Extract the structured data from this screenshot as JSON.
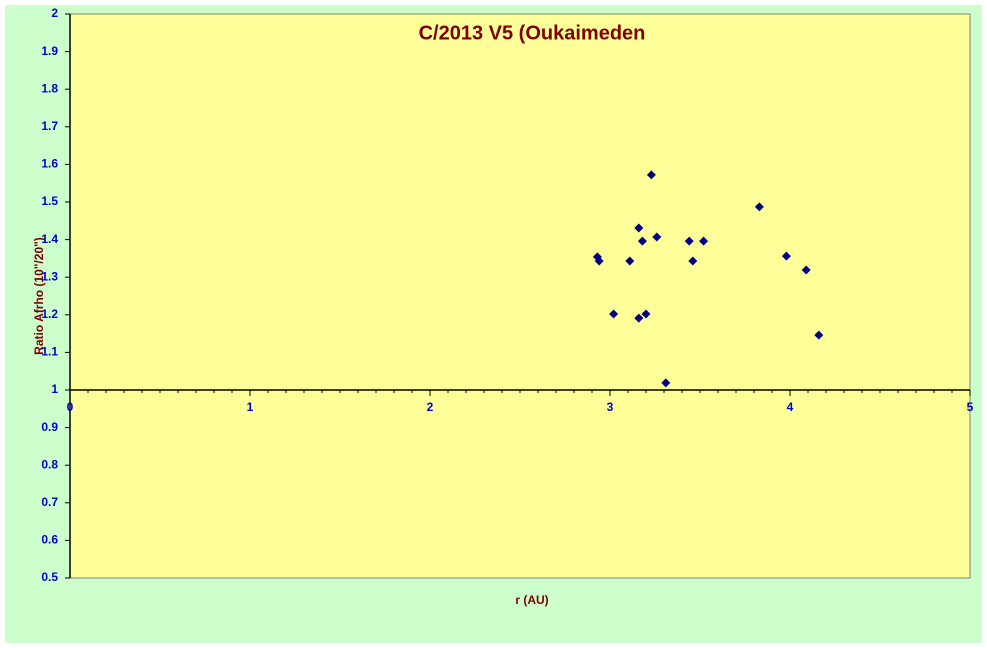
{
  "chart_data": {
    "type": "scatter",
    "title": "C/2013 V5 (Oukaimeden",
    "xlabel": "r (AU)",
    "ylabel": "Ratio Afrho (10\"/20\")",
    "xlim": [
      0,
      5
    ],
    "xticks": [
      0,
      1,
      2,
      3,
      4,
      5
    ],
    "ylim": [
      0.5,
      2
    ],
    "yticks": [
      0.5,
      0.6,
      0.7,
      0.8,
      0.9,
      1,
      1.1,
      1.2,
      1.3,
      1.4,
      1.5,
      1.6,
      1.7,
      1.8,
      1.9,
      2
    ],
    "x_axis_crosses": 1,
    "series": [
      {
        "color": "#000080",
        "x": [
          2.93,
          2.94,
          3.02,
          3.11,
          3.16,
          3.16,
          3.18,
          3.2,
          3.23,
          3.26,
          3.31,
          3.44,
          3.46,
          3.52,
          3.83,
          3.98,
          4.09,
          4.16
        ],
        "values": [
          1.354,
          1.343,
          1.202,
          1.343,
          1.431,
          1.191,
          1.396,
          1.202,
          1.572,
          1.407,
          1.019,
          1.396,
          1.343,
          1.396,
          1.487,
          1.356,
          1.319,
          1.146
        ]
      }
    ]
  }
}
